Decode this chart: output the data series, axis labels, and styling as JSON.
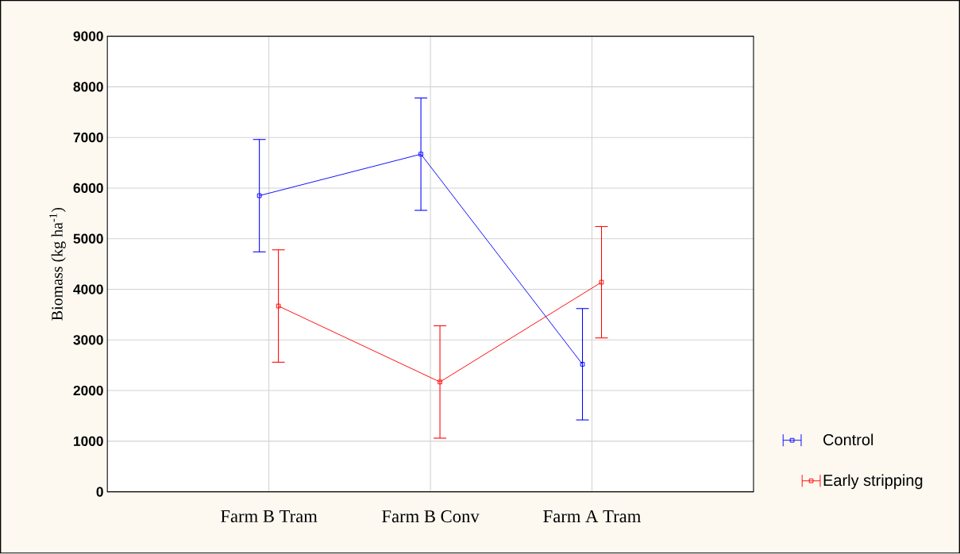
{
  "chart_data": {
    "type": "line",
    "ylabel": "Biomass (kg ha$^{-1}$)",
    "categories": [
      "Farm B Tram",
      "Farm B Conv",
      "Farm A Tram"
    ],
    "series": [
      {
        "name": "Control",
        "color": "#0000ff",
        "values": [
          5850,
          6670,
          2520
        ],
        "errors": [
          1110,
          1110,
          1100
        ]
      },
      {
        "name": "Early stripping",
        "color": "#ff0000",
        "values": [
          3670,
          2170,
          4140
        ],
        "errors": [
          1110,
          1110,
          1100
        ]
      }
    ],
    "ylim": [
      0,
      9000
    ],
    "yticks": [
      0,
      1000,
      2000,
      3000,
      4000,
      5000,
      6000,
      7000,
      8000,
      9000
    ],
    "grid": true,
    "legend": "bottom right",
    "marker": "square",
    "line_style": "solid"
  }
}
